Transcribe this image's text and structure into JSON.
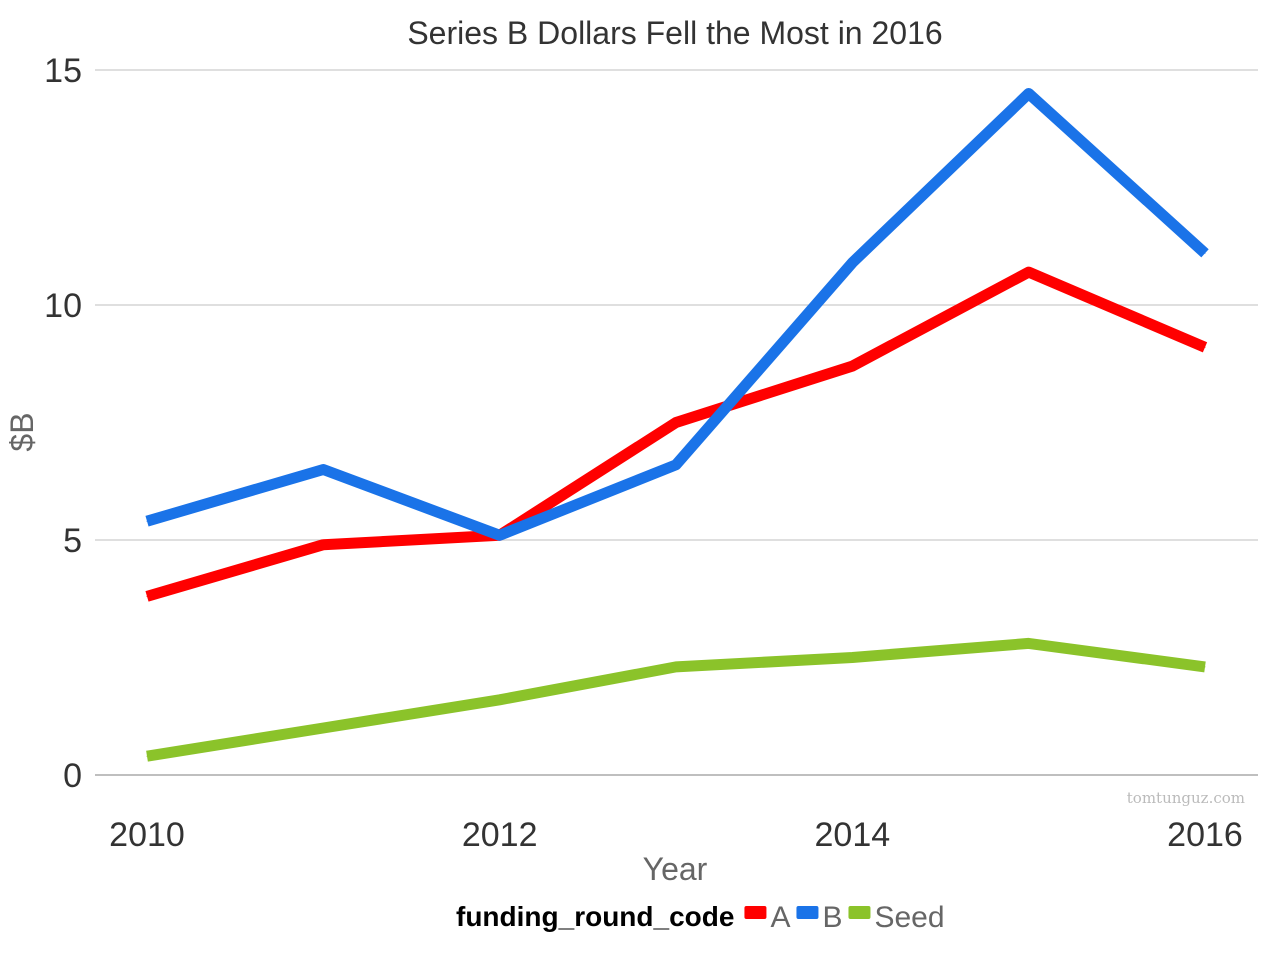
{
  "chart_data": {
    "type": "line",
    "title": "Series B Dollars Fell the Most in 2016",
    "xlabel": "Year",
    "ylabel": "$B",
    "x": [
      2010,
      2011,
      2012,
      2013,
      2014,
      2015,
      2016
    ],
    "xticks": [
      "2010",
      "2012",
      "2014",
      "2016"
    ],
    "yticks": [
      "0",
      "5",
      "10",
      "15"
    ],
    "ylim": [
      0,
      15
    ],
    "grid": true,
    "legend_title": "funding_round_code",
    "legend_position": "bottom",
    "series": [
      {
        "name": "A",
        "color": "#ff0000",
        "values": [
          3.8,
          4.9,
          5.1,
          7.5,
          8.7,
          10.7,
          9.1
        ]
      },
      {
        "name": "B",
        "color": "#1a73e8",
        "values": [
          5.4,
          6.5,
          5.1,
          6.6,
          10.9,
          14.5,
          11.1
        ]
      },
      {
        "name": "Seed",
        "color": "#8bc32a",
        "values": [
          0.4,
          1.0,
          1.6,
          2.3,
          2.5,
          2.8,
          2.3
        ]
      }
    ],
    "watermark": "tomtunguz.com"
  }
}
